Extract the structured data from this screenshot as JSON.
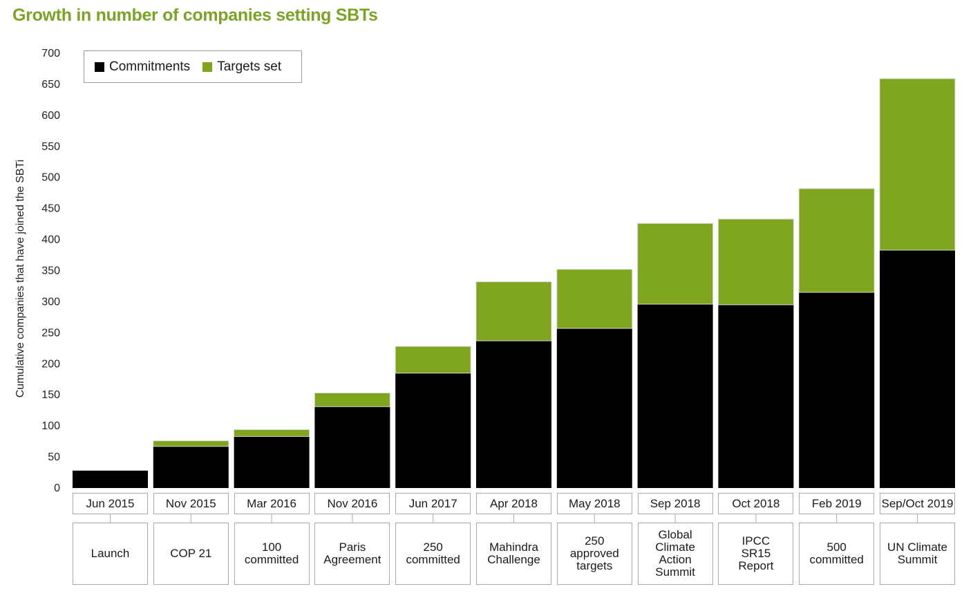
{
  "title": "Growth in number of companies setting SBTs",
  "chart_data": {
    "type": "bar",
    "stacked": true,
    "ylabel": "Cumulative companies that have joined the SBTi",
    "ylim": [
      0,
      700
    ],
    "yticks": [
      0,
      50,
      100,
      150,
      200,
      250,
      300,
      350,
      400,
      450,
      500,
      550,
      600,
      650,
      700
    ],
    "categories": [
      "Jun 2015",
      "Nov 2015",
      "Mar 2016",
      "Nov 2016",
      "Jun 2017",
      "Apr 2018",
      "May 2018",
      "Sep 2018",
      "Oct 2018",
      "Feb 2019",
      "Sep/Oct 2019"
    ],
    "events": [
      "Launch",
      "COP 21",
      "100\ncommitted",
      "Paris\nAgreement",
      "250\ncommitted",
      "Mahindra\nChallenge",
      "250\napproved\ntargets",
      "Global\nClimate\nAction\nSummit",
      "IPCC\nSR15\nReport",
      "500\ncommitted",
      "UN Climate\nSummit"
    ],
    "series": [
      {
        "name": "Commitments",
        "color": "#000000",
        "values": [
          28,
          67,
          83,
          131,
          185,
          237,
          257,
          296,
          295,
          315,
          383
        ]
      },
      {
        "name": "Targets set",
        "color": "#7fa51e",
        "values": [
          0,
          9,
          11,
          22,
          43,
          95,
          95,
          130,
          138,
          167,
          276
        ]
      }
    ],
    "legend_position": "top-left",
    "grid": false
  }
}
